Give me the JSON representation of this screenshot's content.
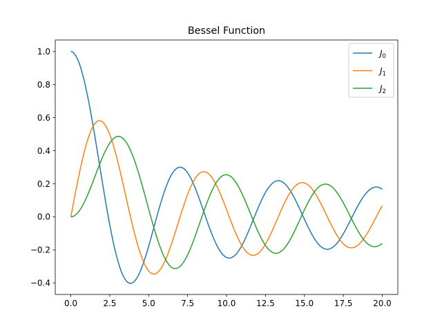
{
  "chart_data": {
    "type": "line",
    "title": "Bessel Function",
    "xlabel": "",
    "ylabel": "",
    "xlim": [
      -1.0,
      21.0
    ],
    "ylim": [
      -0.4699,
      1.0699
    ],
    "x_ticks": [
      0.0,
      2.5,
      5.0,
      7.5,
      10.0,
      12.5,
      15.0,
      17.5,
      20.0
    ],
    "x_tick_labels": [
      "0.0",
      "2.5",
      "5.0",
      "7.5",
      "10.0",
      "12.5",
      "15.0",
      "17.5",
      "20.0"
    ],
    "y_ticks": [
      -0.4,
      -0.2,
      0.0,
      0.2,
      0.4,
      0.6,
      0.8,
      1.0
    ],
    "y_tick_labels": [
      "−0.4",
      "−0.2",
      "0.0",
      "0.2",
      "0.4",
      "0.6",
      "0.8",
      "1.0"
    ],
    "grid": false,
    "legend_position": "top-right",
    "x_domain": [
      0,
      20
    ],
    "sample_count": 400,
    "series": [
      {
        "name": "J0",
        "order": 0,
        "color": "#1f77b4",
        "legend_main": "J",
        "legend_sub": "0",
        "key_points": [
          [
            0,
            1.0
          ],
          [
            2.405,
            0.0
          ],
          [
            3.832,
            -0.4028
          ],
          [
            5.52,
            0.0
          ],
          [
            7.016,
            0.3001
          ],
          [
            8.654,
            0.0
          ],
          [
            10.173,
            -0.2497
          ],
          [
            11.792,
            0.0
          ],
          [
            13.324,
            0.2184
          ],
          [
            14.931,
            0.0
          ],
          [
            16.471,
            -0.1965
          ],
          [
            18.071,
            0.0
          ],
          [
            19.616,
            0.1801
          ],
          [
            20.0,
            0.167
          ]
        ]
      },
      {
        "name": "J1",
        "order": 1,
        "color": "#ff7f0e",
        "legend_main": "J",
        "legend_sub": "1",
        "key_points": [
          [
            0,
            0.0
          ],
          [
            1.841,
            0.5819
          ],
          [
            3.832,
            0.0
          ],
          [
            5.331,
            -0.3461
          ],
          [
            7.016,
            0.0
          ],
          [
            8.536,
            0.2733
          ],
          [
            10.173,
            0.0
          ],
          [
            11.706,
            -0.2333
          ],
          [
            13.324,
            0.0
          ],
          [
            14.864,
            0.207
          ],
          [
            16.471,
            0.0
          ],
          [
            18.016,
            -0.188
          ],
          [
            19.616,
            0.0
          ],
          [
            20.0,
            0.0668
          ]
        ]
      },
      {
        "name": "J2",
        "order": 2,
        "color": "#2ca02c",
        "legend_main": "J",
        "legend_sub": "2",
        "key_points": [
          [
            0,
            0.0
          ],
          [
            3.054,
            0.4865
          ],
          [
            5.136,
            0.0
          ],
          [
            6.706,
            -0.3135
          ],
          [
            8.417,
            0.0
          ],
          [
            9.969,
            0.2547
          ],
          [
            11.62,
            0.0
          ],
          [
            13.17,
            -0.2209
          ],
          [
            14.796,
            0.0
          ],
          [
            16.348,
            0.1981
          ],
          [
            17.96,
            0.0
          ],
          [
            19.513,
            -0.181
          ],
          [
            20.0,
            -0.1603
          ]
        ]
      }
    ]
  }
}
